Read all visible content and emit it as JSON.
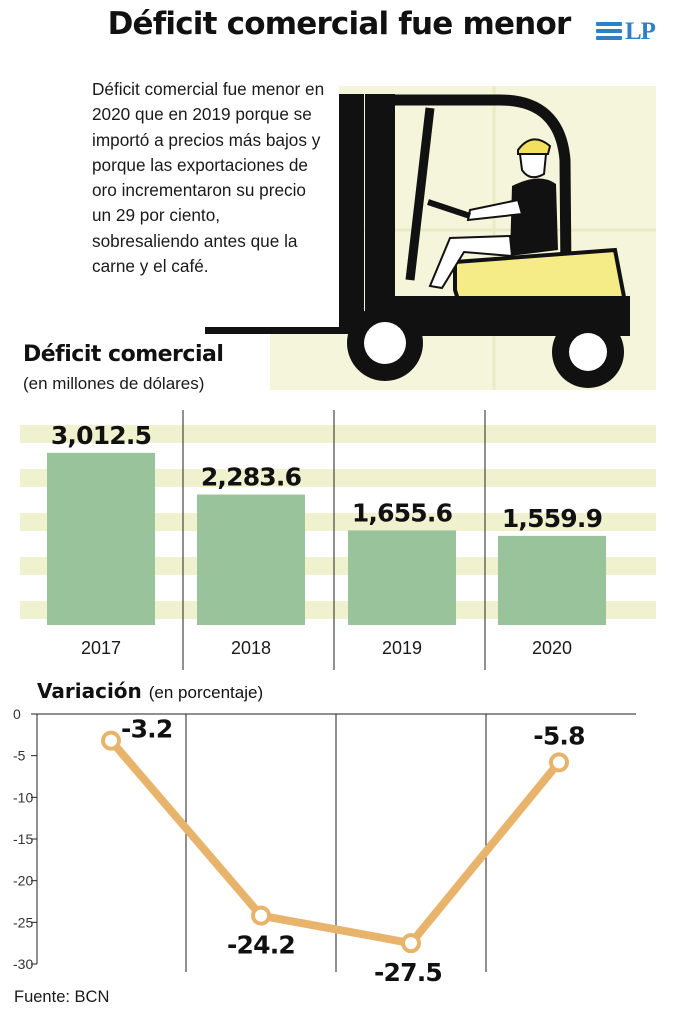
{
  "headline": "Déficit comercial fue menor",
  "logo": "LP",
  "summary": "Déficit comercial fue menor en 2020 que en 2019 porque se importó a precios más bajos y porque las exportaciones de oro incrementaron su precio un 29 por ciento, sobresaliendo antes que la carne y el café.",
  "source": "Fuente: BCN",
  "colors": {
    "bar": "#99c49b",
    "band": "#f0f2cf",
    "line": "#e8b46c",
    "illustration_bg": "#f4f5da",
    "forklift_body": "#f5ec87"
  },
  "icons": [
    "forklift-icon",
    "worker-icon",
    "lp-logo-stripes"
  ],
  "chart_data": [
    {
      "type": "bar",
      "title": "Déficit comercial",
      "subtitle": "(en millones de dólares)",
      "categories": [
        "2017",
        "2018",
        "2019",
        "2020"
      ],
      "values": [
        3012.5,
        2283.6,
        1655.6,
        1559.9
      ],
      "value_labels": [
        "3,012.5",
        "2,283.6",
        "1,655.6",
        "1,559.9"
      ],
      "ylim": [
        0,
        3500
      ],
      "grid": "horizontal bands"
    },
    {
      "type": "line",
      "title": "Variación",
      "subtitle": "(en porcentaje)",
      "categories": [
        "2017",
        "2018",
        "2019",
        "2020"
      ],
      "values": [
        -3.2,
        -24.2,
        -27.5,
        -5.8
      ],
      "value_labels": [
        "-3.2",
        "-24.2",
        "-27.5",
        "-5.8"
      ],
      "ylim": [
        -30,
        0
      ],
      "yticks": [
        "0",
        "-5",
        "-10",
        "-15",
        "-20",
        "-25",
        "-30"
      ]
    }
  ]
}
